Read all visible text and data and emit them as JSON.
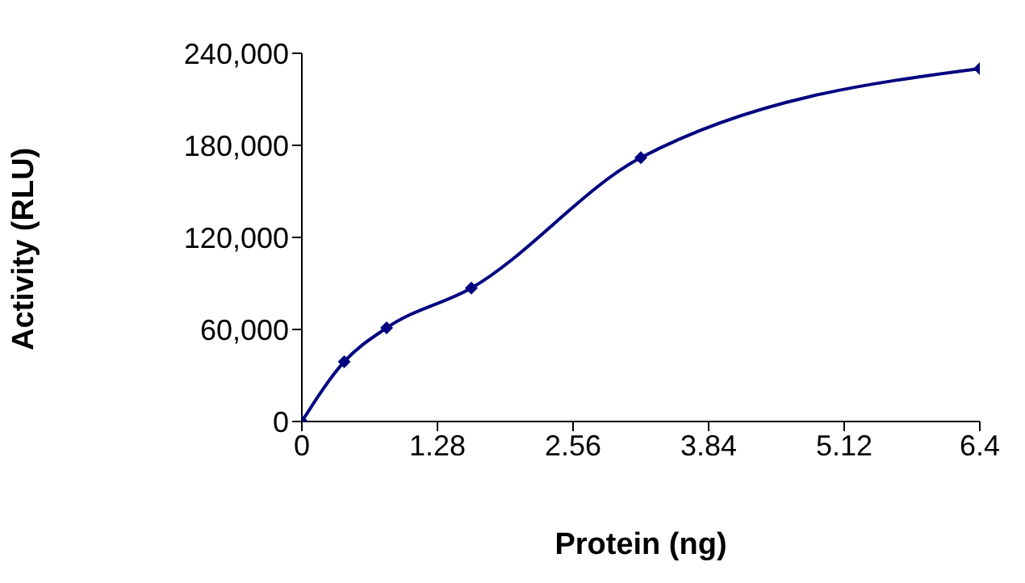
{
  "chart_data": {
    "type": "line",
    "xlabel": "Protein (ng)",
    "ylabel": "Activity (RLU)",
    "x": [
      0,
      0.4,
      0.8,
      1.6,
      3.2,
      6.4
    ],
    "series": [
      {
        "color": "#000080",
        "values": [
          0,
          39000,
          61000,
          87000,
          172000,
          230000
        ]
      }
    ],
    "xlim": [
      0,
      6.4
    ],
    "xticks": [
      0,
      1.28,
      2.56,
      3.84,
      5.12,
      6.4
    ],
    "ylim": [
      0,
      240000
    ],
    "yticks": [
      {
        "value": 0,
        "label": "0"
      },
      {
        "value": 60000,
        "label": "60,000"
      },
      {
        "value": 120000,
        "label": "120,000"
      },
      {
        "value": 180000,
        "label": "180,000"
      },
      {
        "value": 240000,
        "label": "240,000"
      }
    ],
    "grid": false,
    "legend": false,
    "marker": "diamond",
    "line_style": "solid"
  }
}
